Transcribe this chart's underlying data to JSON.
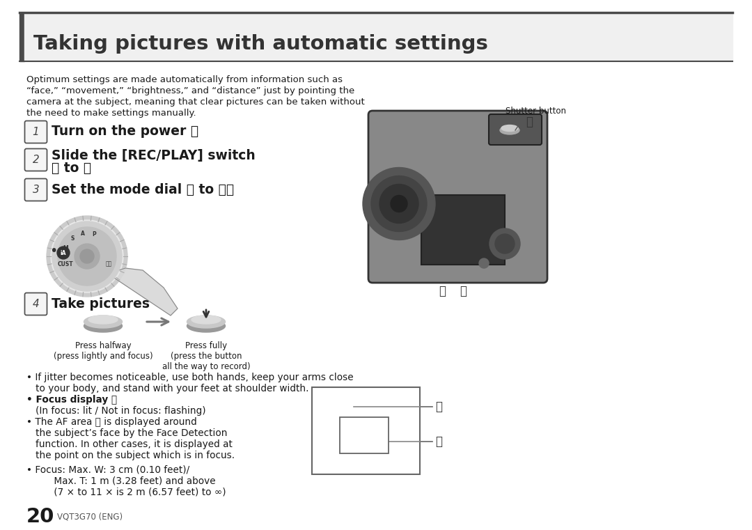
{
  "title": "Taking pictures with automatic settings",
  "bg_color": "#ffffff",
  "title_bar_color": "#4a4a4a",
  "title_text_color": "#333333",
  "body_text_color": "#1a1a1a",
  "gray_text": "#555555",
  "intro_line1": "Optimum settings are made automatically from information such as",
  "intro_line2": "“face,” “movement,” “brightness,” and “distance” just by pointing the",
  "intro_line3": "camera at the subject, meaning that clear pictures can be taken without",
  "intro_line4": "the need to make settings manually.",
  "step1_text": "Turn on the power Ⓐ",
  "step2_line1": "Slide the [REC/PLAY] switch",
  "step2_line2": "Ⓑ to 📷",
  "step3_text": "Set the mode dial Ⓒ to ⒶⒶ",
  "step4_text": "Take pictures",
  "shutter_label": "Shutter button",
  "press_halfway_l1": "Press halfway",
  "press_halfway_l2": "(press lightly and focus)",
  "press_fully_l1": "Press fully",
  "press_fully_l2": "(press the button",
  "press_fully_l3": "all the way to record)",
  "b1_l1": "• If jitter becomes noticeable, use both hands, keep your arms close",
  "b1_l2": "   to your body, and stand with your feet at shoulder width.",
  "b2_bold": "• Focus display ⓓ",
  "b2_sub": "   (In focus: lit / Not in focus: flashing)",
  "b3_l1": "• The AF area ⓔ is displayed around",
  "b3_l2": "   the subject’s face by the Face Detection",
  "b3_l3": "   function. In other cases, it is displayed at",
  "b3_l4": "   the point on the subject which is in focus.",
  "b4_l1": "• Focus: Max. W: 3 cm (0.10 feet)/",
  "b4_l2": "         Max. T: 1 m (3.28 feet) and above",
  "b4_l3": "         (7 × to 11 × is 2 m (6.57 feet) to ∞)",
  "page_num": "20",
  "page_code": "VQT3G70 (ENG)"
}
